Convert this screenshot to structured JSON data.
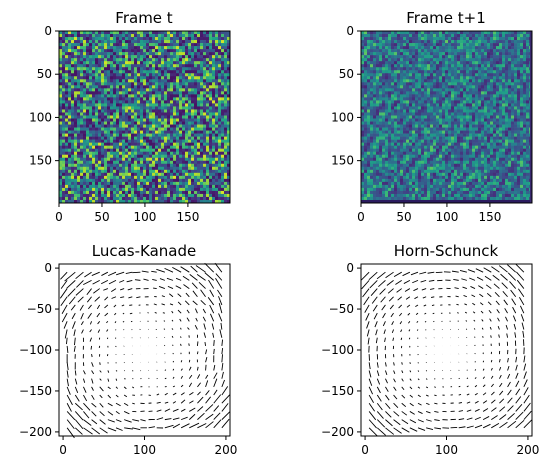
{
  "chart_data": [
    {
      "type": "heatmap",
      "title": "Frame t",
      "xlabel": "",
      "ylabel": "",
      "xticks": [
        0,
        50,
        100,
        150
      ],
      "yticks": [
        0,
        50,
        100,
        150
      ],
      "xlim": [
        0,
        199
      ],
      "ylim": [
        199,
        0
      ],
      "grid": false,
      "colormap": "viridis",
      "description_values": "random noise field 200x200"
    },
    {
      "type": "heatmap",
      "title": "Frame t+1",
      "xlabel": "",
      "ylabel": "",
      "xticks": [
        0,
        50,
        100,
        150
      ],
      "yticks": [
        0,
        50,
        100,
        150
      ],
      "xlim": [
        0,
        199
      ],
      "ylim": [
        199,
        0
      ],
      "grid": false,
      "colormap": "viridis"
    },
    {
      "type": "quiver",
      "title": "Lucas-Kanade",
      "xlabel": "",
      "ylabel": "",
      "xticks": [
        0,
        100,
        200
      ],
      "yticks": [
        0,
        -50,
        -100,
        -150,
        -200
      ],
      "xlim": [
        -5,
        205
      ],
      "ylim": [
        -205,
        5
      ],
      "grid": false,
      "field": "rotation",
      "center": [
        100,
        -100
      ],
      "noisy": true
    },
    {
      "type": "quiver",
      "title": "Horn-Schunck",
      "xlabel": "",
      "ylabel": "",
      "xticks": [
        0,
        100,
        200
      ],
      "yticks": [
        0,
        -50,
        -100,
        -150,
        -200
      ],
      "xlim": [
        -5,
        205
      ],
      "ylim": [
        -205,
        5
      ],
      "grid": false,
      "field": "rotation",
      "center": [
        100,
        -100
      ],
      "noisy": false
    }
  ]
}
